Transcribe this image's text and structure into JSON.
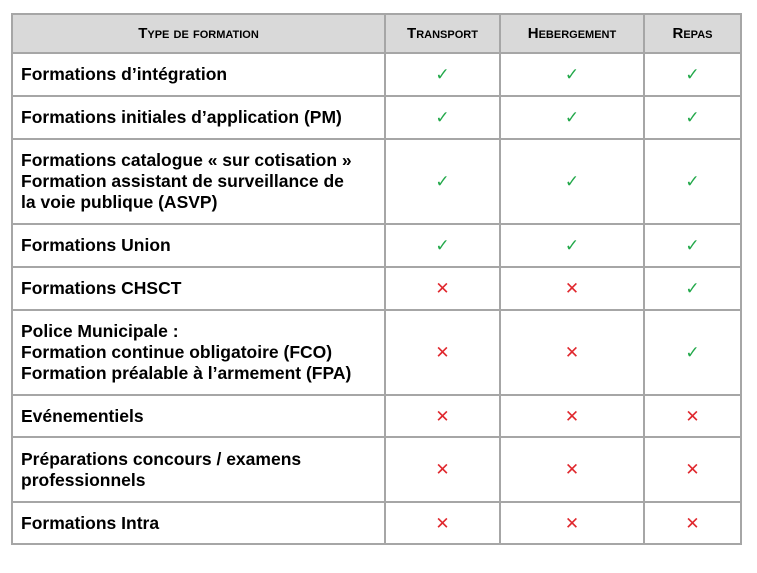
{
  "headers": [
    "Type de formation",
    "Transport",
    "Hebergement",
    "Repas"
  ],
  "colors": {
    "check": "#22a84a",
    "cross": "#e0282e",
    "header_bg": "#d9d9d9"
  },
  "symbols": {
    "yes": "✓",
    "no": "✕"
  },
  "rows": [
    {
      "label": [
        "Formations d’intégration"
      ],
      "values": [
        "yes",
        "yes",
        "yes"
      ]
    },
    {
      "label": [
        "Formations initiales d’application (PM)"
      ],
      "values": [
        "yes",
        "yes",
        "yes"
      ]
    },
    {
      "label": [
        "Formations catalogue « sur cotisation »",
        "Formation assistant de surveillance de",
        "la voie publique (ASVP)"
      ],
      "values": [
        "yes",
        "yes",
        "yes"
      ]
    },
    {
      "label": [
        "Formations Union"
      ],
      "values": [
        "yes",
        "yes",
        "yes"
      ]
    },
    {
      "label": [
        "Formations CHSCT"
      ],
      "values": [
        "no",
        "no",
        "yes"
      ]
    },
    {
      "label": [
        "Police Municipale :",
        "Formation continue obligatoire (FCO)",
        "Formation préalable à l’armement (FPA)"
      ],
      "values": [
        "no",
        "no",
        "yes"
      ]
    },
    {
      "label": [
        "Evénementiels"
      ],
      "values": [
        "no",
        "no",
        "no"
      ]
    },
    {
      "label": [
        "Préparations concours / examens",
        "professionnels"
      ],
      "values": [
        "no",
        "no",
        "no"
      ]
    },
    {
      "label": [
        "Formations Intra"
      ],
      "values": [
        "no",
        "no",
        "no"
      ]
    }
  ]
}
